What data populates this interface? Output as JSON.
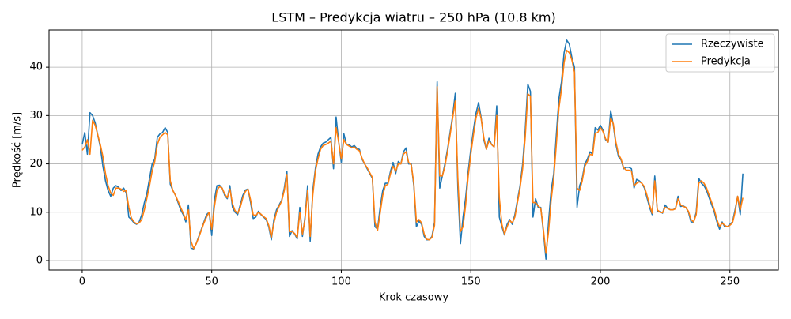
{
  "chart_data": {
    "type": "line",
    "title": "LSTM – Predykcja wiatru – 250 hPa (10.8 km)",
    "x_label": "Krok czasowy",
    "y_label": "Prędkość [m/s]",
    "xlim": [
      -12.8,
      268.7
    ],
    "ylim": [
      -1.96,
      47.7
    ],
    "xticks": [
      0,
      50,
      100,
      150,
      200,
      250
    ],
    "yticks": [
      0,
      10,
      20,
      30,
      40
    ],
    "grid": true,
    "legend": "upper right",
    "x": [
      0,
      1,
      2,
      3,
      4,
      5,
      6,
      7,
      8,
      9,
      10,
      11,
      12,
      13,
      14,
      15,
      16,
      17,
      18,
      19,
      20,
      21,
      22,
      23,
      24,
      25,
      26,
      27,
      28,
      29,
      30,
      31,
      32,
      33,
      34,
      35,
      36,
      37,
      38,
      39,
      40,
      41,
      42,
      43,
      44,
      45,
      46,
      47,
      48,
      49,
      50,
      51,
      52,
      53,
      54,
      55,
      56,
      57,
      58,
      59,
      60,
      61,
      62,
      63,
      64,
      65,
      66,
      67,
      68,
      69,
      70,
      71,
      72,
      73,
      74,
      75,
      76,
      77,
      78,
      79,
      80,
      81,
      82,
      83,
      84,
      85,
      86,
      87,
      88,
      89,
      90,
      91,
      92,
      93,
      94,
      95,
      96,
      97,
      98,
      99,
      100,
      101,
      102,
      103,
      104,
      105,
      106,
      107,
      108,
      109,
      110,
      111,
      112,
      113,
      114,
      115,
      116,
      117,
      118,
      119,
      120,
      121,
      122,
      123,
      124,
      125,
      126,
      127,
      128,
      129,
      130,
      131,
      132,
      133,
      134,
      135,
      136,
      137,
      138,
      139,
      140,
      141,
      142,
      143,
      144,
      145,
      146,
      147,
      148,
      149,
      150,
      151,
      152,
      153,
      154,
      155,
      156,
      157,
      158,
      159,
      160,
      161,
      162,
      163,
      164,
      165,
      166,
      167,
      168,
      169,
      170,
      171,
      172,
      173,
      174,
      175,
      176,
      177,
      178,
      179,
      180,
      181,
      182,
      183,
      184,
      185,
      186,
      187,
      188,
      189,
      190,
      191,
      192,
      193,
      194,
      195,
      196,
      197,
      198,
      199,
      200,
      201,
      202,
      203,
      204,
      205,
      206,
      207,
      208,
      209,
      210,
      211,
      212,
      213,
      214,
      215,
      216,
      217,
      218,
      219,
      220,
      221,
      222,
      223,
      224,
      225,
      226,
      227,
      228,
      229,
      230,
      231,
      232,
      233,
      234,
      235,
      236,
      237,
      238,
      239,
      240,
      241,
      242,
      243,
      244,
      245,
      246,
      247,
      248,
      249,
      250,
      251,
      252,
      253,
      254,
      255
    ],
    "series": [
      {
        "name": "Rzeczywiste",
        "color": "#1f77b4",
        "values": [
          24,
          26.5,
          22,
          30.6,
          30,
          28.5,
          26,
          23.5,
          19.5,
          16.5,
          14.5,
          13.3,
          15,
          15.5,
          15.2,
          14.5,
          15,
          14,
          9,
          8.5,
          7.8,
          7.5,
          8,
          9.5,
          12,
          14,
          17,
          20,
          21,
          25.5,
          26.2,
          26.5,
          27.5,
          26.5,
          15.8,
          14.5,
          13.5,
          12,
          10.5,
          9.5,
          8,
          11.5,
          2.6,
          2.4,
          3.5,
          5,
          6.5,
          8,
          9.5,
          10,
          5.2,
          12.5,
          15.5,
          15.6,
          15,
          13.5,
          12.8,
          15.5,
          11,
          10,
          9.5,
          11.5,
          13.5,
          14.6,
          14.8,
          12,
          8.7,
          9,
          10.2,
          9.5,
          9,
          8.5,
          7,
          4.3,
          8.5,
          10.5,
          11.5,
          12.5,
          15,
          18.5,
          5,
          6.2,
          5.5,
          4.5,
          11,
          5,
          9,
          15.5,
          4,
          14.5,
          19,
          22,
          23.5,
          24.3,
          24.5,
          25,
          25.5,
          19,
          29.7,
          24.5,
          20.3,
          26.2,
          24,
          24,
          23.5,
          23.8,
          23.2,
          23,
          21,
          20,
          19,
          18,
          17,
          7,
          6.5,
          11,
          14.5,
          16,
          16,
          18.5,
          20.3,
          18,
          20.5,
          20,
          22.5,
          23.3,
          20,
          20,
          15.5,
          7,
          8.2,
          7.5,
          5,
          4.3,
          4.3,
          5,
          8,
          37,
          15,
          17.5,
          20,
          23,
          26.5,
          30,
          34.6,
          15,
          3.5,
          9,
          13,
          18.5,
          23,
          27,
          30.5,
          32.7,
          29.5,
          25,
          23,
          25.3,
          24,
          23.5,
          32,
          9,
          7,
          5.3,
          7.5,
          8.5,
          7.5,
          9.5,
          12.5,
          15.5,
          20,
          27,
          36.5,
          35,
          9,
          12.8,
          11,
          11,
          6,
          0.3,
          8,
          14.5,
          18,
          26,
          33.5,
          37,
          43,
          45.6,
          44.8,
          42,
          40,
          11,
          15.5,
          17,
          20,
          21,
          22.5,
          22,
          27.5,
          27,
          28,
          27,
          25,
          24.5,
          31,
          28,
          24,
          21.5,
          20.8,
          19,
          19.3,
          19.3,
          19,
          15,
          16.8,
          16.5,
          16,
          15,
          13,
          11,
          9.5,
          17.5,
          10.2,
          10.2,
          9.8,
          11.5,
          10.8,
          10.5,
          10.5,
          10.8,
          13.3,
          11.2,
          11.3,
          11,
          10,
          8,
          8,
          10,
          17,
          16,
          15.5,
          14.5,
          13,
          11.5,
          10,
          8,
          6.5,
          8,
          7,
          7,
          7.5,
          8,
          10.5,
          13.3,
          9.5,
          18
        ]
      },
      {
        "name": "Predykcja",
        "color": "#ff7f0e",
        "values": [
          22.8,
          23.5,
          25,
          22,
          29,
          28,
          26,
          24,
          21.5,
          18,
          15.5,
          14,
          13.5,
          15,
          15,
          14.8,
          14.3,
          14.5,
          11,
          8.8,
          8,
          7.6,
          7.8,
          8.5,
          10.5,
          13,
          15.5,
          18.5,
          20.5,
          24,
          25.5,
          26,
          26.5,
          26,
          16.5,
          14.5,
          13.5,
          12.3,
          11,
          9.8,
          8.5,
          10.5,
          4,
          2.5,
          3.5,
          4.8,
          6.3,
          7.8,
          9,
          10,
          6.5,
          11,
          14.5,
          15.3,
          15,
          13.8,
          13,
          14.8,
          11.8,
          10.3,
          9.8,
          11,
          13,
          14.3,
          14.8,
          12.5,
          9.5,
          9.3,
          10,
          9.6,
          9.1,
          8.7,
          7.3,
          4.8,
          7.8,
          10,
          11.2,
          12.3,
          14.5,
          17.8,
          6,
          6,
          5.6,
          4.8,
          10,
          5.5,
          8.5,
          14.5,
          5,
          13.5,
          18.5,
          21,
          23,
          23.8,
          24,
          24.3,
          24.7,
          20,
          27.5,
          24.5,
          21,
          25,
          24,
          23.7,
          23.3,
          23.5,
          23,
          22.7,
          21.2,
          20,
          19.2,
          18.2,
          17.2,
          8,
          6.2,
          9.8,
          13.5,
          15.5,
          15.8,
          18,
          19.5,
          18.5,
          20,
          20,
          22,
          22.5,
          20.3,
          19.8,
          16,
          8,
          8.5,
          7.8,
          5.5,
          4.4,
          4.3,
          4.8,
          7.3,
          36,
          17.5,
          17.5,
          19.5,
          22.5,
          26,
          29.5,
          33,
          17,
          6,
          7,
          11.5,
          17.5,
          22,
          26,
          29.5,
          31.5,
          29.3,
          25.5,
          23,
          24.8,
          24,
          23.5,
          30,
          13,
          7.5,
          5.5,
          7,
          8.3,
          7.8,
          9,
          12,
          15,
          19,
          25.5,
          34.5,
          34,
          12,
          12,
          11.3,
          10.8,
          6.5,
          1.5,
          6,
          12.5,
          17,
          24,
          31.5,
          35.5,
          41,
          43.5,
          43,
          41.5,
          39,
          15,
          14.5,
          16.5,
          19.5,
          20.5,
          22,
          21.8,
          26.3,
          26.5,
          27.5,
          26.7,
          25.2,
          24.5,
          29.5,
          28.3,
          24.5,
          22,
          21,
          19.2,
          18.7,
          18.7,
          18.5,
          15.5,
          16,
          16.3,
          16,
          15.3,
          13.5,
          11.5,
          9.8,
          16.5,
          10.5,
          10,
          9.9,
          11,
          10.8,
          10.5,
          10.5,
          10.7,
          12.8,
          11.5,
          11.2,
          11,
          10.2,
          8.5,
          8,
          9.5,
          16,
          16.5,
          16,
          15,
          13.5,
          12,
          10.5,
          8.5,
          7,
          7.8,
          7.3,
          7,
          7.3,
          7.8,
          10,
          13.3,
          10.5,
          13
        ]
      }
    ]
  }
}
